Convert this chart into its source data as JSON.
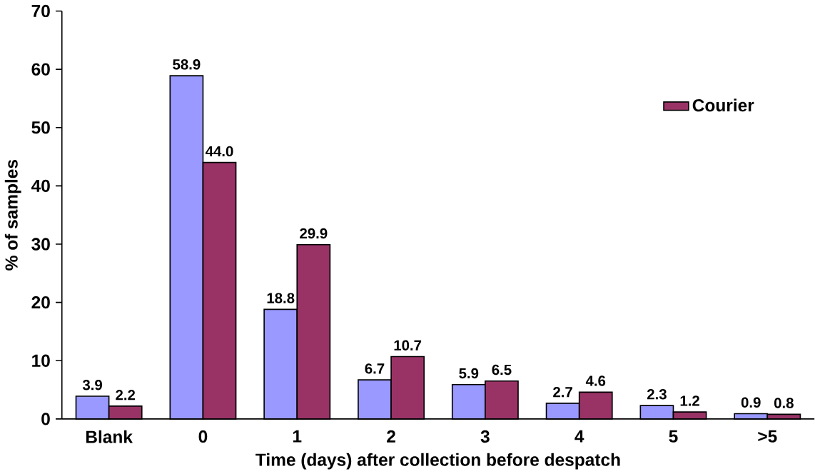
{
  "chart_data": {
    "type": "bar",
    "xlabel": "Time (days) after collection before despatch",
    "ylabel": "% of samples",
    "categories": [
      "Blank",
      "0",
      "1",
      "2",
      "3",
      "4",
      "5",
      ">5"
    ],
    "series": [
      {
        "color": "#9999ff",
        "values": [
          3.9,
          58.9,
          18.8,
          6.7,
          5.9,
          2.7,
          2.3,
          0.9
        ],
        "value_labels": [
          "3.9",
          "58.9",
          "18.8",
          "6.7",
          "5.9",
          "2.7",
          "2.3",
          "0.9"
        ]
      },
      {
        "name": "Courier",
        "color": "#993366",
        "values": [
          2.2,
          44.0,
          29.9,
          10.7,
          6.5,
          4.6,
          1.2,
          0.8
        ],
        "value_labels": [
          "2.2",
          "44.0",
          "29.9",
          "10.7",
          "6.5",
          "4.6",
          "1.2",
          "0.8"
        ]
      }
    ],
    "ylim": [
      0,
      70
    ],
    "yticks": [
      0,
      10,
      20,
      30,
      40,
      50,
      60,
      70
    ],
    "grid": false,
    "legend": "top right"
  }
}
